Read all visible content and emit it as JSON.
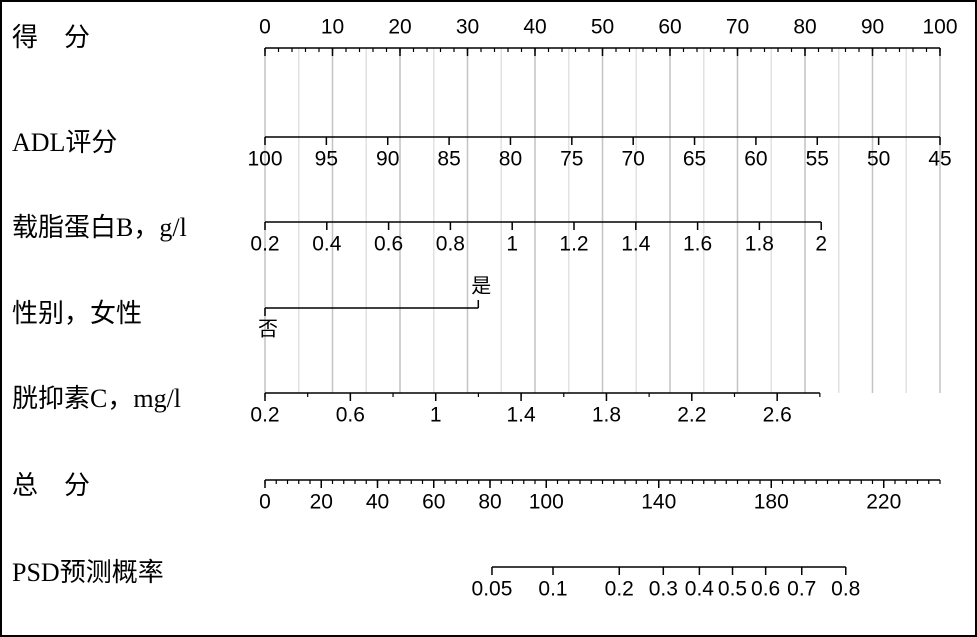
{
  "chart_data": {
    "type": "nomogram",
    "grid": true,
    "scales": [
      {
        "name": "得　分",
        "role": "points",
        "lim": [
          0,
          100
        ],
        "ticks": [
          0,
          10,
          20,
          30,
          40,
          50,
          60,
          70,
          80,
          90,
          100
        ],
        "minor_step": 2,
        "grid_step": 5
      },
      {
        "name": "ADL评分",
        "lim": [
          100,
          45
        ],
        "points": [
          0,
          100
        ],
        "ticks": [
          100,
          95,
          90,
          85,
          80,
          75,
          70,
          65,
          60,
          55,
          50,
          45
        ]
      },
      {
        "name": "载脂蛋白B，g/l",
        "lim": [
          0.2,
          2
        ],
        "points": [
          0,
          82.4
        ],
        "ticks": [
          0.2,
          0.4,
          0.6,
          0.8,
          1,
          1.2,
          1.4,
          1.6,
          1.8,
          2
        ]
      },
      {
        "name": "性别，女性",
        "categories": [
          "否",
          "是"
        ],
        "points": [
          0,
          31.6
        ]
      },
      {
        "name": "胱抑素C，mg/l",
        "lim": [
          0.2,
          2.8
        ],
        "points": [
          0,
          82.2
        ],
        "ticks": [
          0.2,
          0.6,
          1,
          1.4,
          1.8,
          2.2,
          2.6
        ],
        "minor_step": 0.2
      },
      {
        "name": "总　分",
        "role": "total",
        "lim": [
          0,
          240
        ],
        "ticks": [
          0,
          20,
          40,
          60,
          80,
          100,
          140,
          180,
          220
        ],
        "minor_step": 4
      },
      {
        "name": "PSD预测概率",
        "scale": "logit",
        "lim": [
          0.05,
          0.8
        ],
        "total": [
          80.7,
          206.5
        ],
        "ticks": [
          0.05,
          0.1,
          0.2,
          0.3,
          0.4,
          0.5,
          0.6,
          0.7,
          0.8
        ]
      }
    ]
  }
}
